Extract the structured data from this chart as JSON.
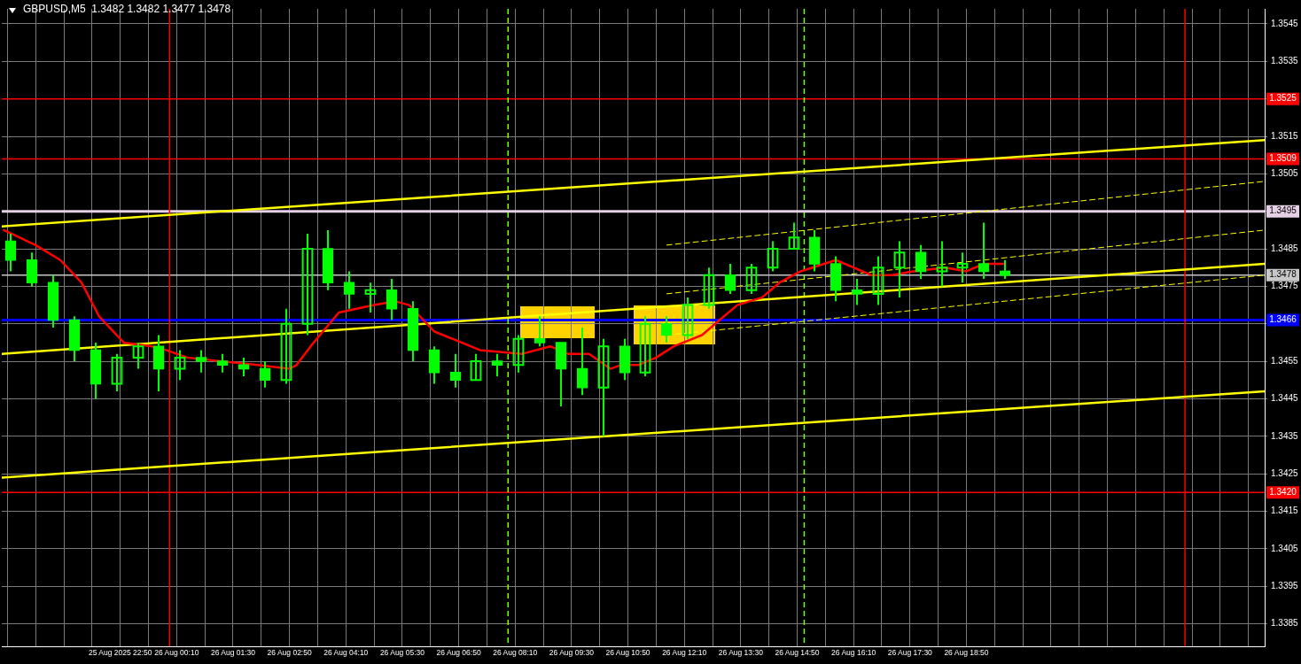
{
  "chart_data": {
    "type": "candlestick",
    "title": "GBPUSD,M5  1.3482 1.3482 1.3477 1.3478",
    "color": "#00ff00",
    "x": [
      "2025-08-25T20:15",
      "2025-08-25T20:45",
      "2025-08-25T21:15",
      "2025-08-25T21:45",
      "2025-08-25T22:15",
      "2025-08-25T22:45",
      "2025-08-25T23:15",
      "2025-08-25T23:45",
      "2025-08-26T00:15",
      "2025-08-26T00:45",
      "2025-08-26T01:15",
      "2025-08-26T01:45",
      "2025-08-26T02:15",
      "2025-08-26T02:45",
      "2025-08-26T03:15",
      "2025-08-26T03:45",
      "2025-08-26T04:15",
      "2025-08-26T04:45",
      "2025-08-26T05:15",
      "2025-08-26T05:45",
      "2025-08-26T06:15",
      "2025-08-26T06:45",
      "2025-08-26T07:15",
      "2025-08-26T07:45",
      "2025-08-26T08:15",
      "2025-08-26T08:45",
      "2025-08-26T09:15",
      "2025-08-26T09:45",
      "2025-08-26T10:15",
      "2025-08-26T10:45",
      "2025-08-26T11:15",
      "2025-08-26T11:45",
      "2025-08-26T12:15",
      "2025-08-26T12:45",
      "2025-08-26T13:15",
      "2025-08-26T13:45",
      "2025-08-26T14:15",
      "2025-08-26T14:45",
      "2025-08-26T15:15",
      "2025-08-26T15:45",
      "2025-08-26T16:15",
      "2025-08-26T16:45",
      "2025-08-26T17:15",
      "2025-08-26T17:45",
      "2025-08-26T18:15",
      "2025-08-26T18:45",
      "2025-08-26T19:15",
      "2025-08-26T19:45"
    ],
    "ohlc": [
      [
        1.3487,
        1.3489,
        1.3479,
        1.3482
      ],
      [
        1.3482,
        1.3484,
        1.3475,
        1.3476
      ],
      [
        1.3476,
        1.3478,
        1.3464,
        1.3466
      ],
      [
        1.3466,
        1.3467,
        1.3455,
        1.3458
      ],
      [
        1.3458,
        1.346,
        1.3445,
        1.3449
      ],
      [
        1.3449,
        1.3457,
        1.3447,
        1.3456
      ],
      [
        1.3456,
        1.346,
        1.3453,
        1.3459
      ],
      [
        1.3459,
        1.3462,
        1.3447,
        1.3453
      ],
      [
        1.3453,
        1.3458,
        1.345,
        1.3456
      ],
      [
        1.3456,
        1.3458,
        1.3452,
        1.3455
      ],
      [
        1.3455,
        1.3457,
        1.3452,
        1.3454
      ],
      [
        1.3454,
        1.3456,
        1.3451,
        1.3453
      ],
      [
        1.3453,
        1.3455,
        1.3448,
        1.345
      ],
      [
        1.345,
        1.3469,
        1.3449,
        1.3465
      ],
      [
        1.3465,
        1.3489,
        1.3462,
        1.3485
      ],
      [
        1.3485,
        1.349,
        1.3474,
        1.3476
      ],
      [
        1.3476,
        1.3479,
        1.3469,
        1.3473
      ],
      [
        1.3473,
        1.3476,
        1.3468,
        1.3474
      ],
      [
        1.3474,
        1.3477,
        1.3466,
        1.3469
      ],
      [
        1.3469,
        1.3471,
        1.3455,
        1.3458
      ],
      [
        1.3458,
        1.3459,
        1.3449,
        1.3452
      ],
      [
        1.3452,
        1.3457,
        1.3448,
        1.345
      ],
      [
        1.345,
        1.3457,
        1.345,
        1.3455
      ],
      [
        1.3455,
        1.3457,
        1.3451,
        1.3454
      ],
      [
        1.3454,
        1.3462,
        1.3452,
        1.3461
      ],
      [
        1.3461,
        1.3467,
        1.3459,
        1.346
      ],
      [
        1.346,
        1.346,
        1.3443,
        1.3453
      ],
      [
        1.3453,
        1.3464,
        1.3446,
        1.3448
      ],
      [
        1.3448,
        1.3461,
        1.3435,
        1.3459
      ],
      [
        1.3459,
        1.3461,
        1.345,
        1.3452
      ],
      [
        1.3452,
        1.3467,
        1.3451,
        1.3465
      ],
      [
        1.3465,
        1.3467,
        1.346,
        1.3462
      ],
      [
        1.3462,
        1.3472,
        1.3461,
        1.347
      ],
      [
        1.347,
        1.348,
        1.3469,
        1.3478
      ],
      [
        1.3478,
        1.3481,
        1.3473,
        1.3474
      ],
      [
        1.3474,
        1.3481,
        1.3473,
        1.348
      ],
      [
        1.348,
        1.3487,
        1.3479,
        1.3485
      ],
      [
        1.3485,
        1.3492,
        1.3485,
        1.3488
      ],
      [
        1.3488,
        1.349,
        1.3479,
        1.3481
      ],
      [
        1.3481,
        1.3483,
        1.3471,
        1.3474
      ],
      [
        1.3474,
        1.3477,
        1.347,
        1.3473
      ],
      [
        1.3473,
        1.3483,
        1.347,
        1.348
      ],
      [
        1.348,
        1.3487,
        1.3472,
        1.3484
      ],
      [
        1.3484,
        1.3486,
        1.3477,
        1.3479
      ],
      [
        1.3479,
        1.3487,
        1.3475,
        1.348
      ],
      [
        1.348,
        1.3484,
        1.3476,
        1.3481
      ],
      [
        1.3481,
        1.3492,
        1.3477,
        1.3479
      ],
      [
        1.3479,
        1.3482,
        1.3477,
        1.3478
      ]
    ],
    "series": [
      {
        "type": "line",
        "color": "#ff0000",
        "x": [
          "2025-08-25T20:05",
          "2025-08-25T20:50",
          "2025-08-25T21:25",
          "2025-08-25T21:55",
          "2025-08-25T22:20",
          "2025-08-25T22:55",
          "2025-08-25T23:35",
          "2025-08-25T23:55",
          "2025-08-26T00:25",
          "2025-08-26T01:15",
          "2025-08-26T02:05",
          "2025-08-26T02:50",
          "2025-08-26T03:00",
          "2025-08-26T03:20",
          "2025-08-26T04:00",
          "2025-08-26T04:50",
          "2025-08-26T05:20",
          "2025-08-26T05:40",
          "2025-08-26T06:15",
          "2025-08-26T07:20",
          "2025-08-26T08:20",
          "2025-08-26T09:00",
          "2025-08-26T09:25",
          "2025-08-26T09:55",
          "2025-08-26T10:25",
          "2025-08-26T10:40",
          "2025-08-26T11:05",
          "2025-08-26T11:30",
          "2025-08-26T11:55",
          "2025-08-26T12:35",
          "2025-08-26T13:00",
          "2025-08-26T13:25",
          "2025-08-26T14:00",
          "2025-08-26T14:25",
          "2025-08-26T14:55",
          "2025-08-26T15:45",
          "2025-08-26T16:35",
          "2025-08-26T17:05",
          "2025-08-26T17:35",
          "2025-08-26T18:20",
          "2025-08-26T18:50",
          "2025-08-26T19:15",
          "2025-08-26T19:45"
        ],
        "values": [
          1.349,
          1.3486,
          1.3482,
          1.3476,
          1.3467,
          1.346,
          1.3459,
          1.3458,
          1.3456,
          1.3455,
          1.3454,
          1.3453,
          1.3454,
          1.3459,
          1.3468,
          1.347,
          1.3471,
          1.347,
          1.3463,
          1.3458,
          1.3457,
          1.3459,
          1.3457,
          1.3457,
          1.3453,
          1.3454,
          1.3454,
          1.3456,
          1.3459,
          1.3462,
          1.3466,
          1.347,
          1.3472,
          1.3476,
          1.3479,
          1.3482,
          1.3478,
          1.3478,
          1.3479,
          1.348,
          1.3479,
          1.3481,
          1.3481
        ]
      },
      {
        "type": "line",
        "color": "#ffff00",
        "x": [
          "2025-08-25T20:02",
          "2025-08-27T01:53"
        ],
        "values": [
          1.3491,
          1.3514
        ]
      },
      {
        "type": "line",
        "color": "#ffff00",
        "x": [
          "2025-08-25T20:02",
          "2025-08-27T01:53"
        ],
        "values": [
          1.3457,
          1.3481
        ]
      },
      {
        "type": "line",
        "color": "#ffff00",
        "x": [
          "2025-08-25T20:02",
          "2025-08-27T01:53"
        ],
        "values": [
          1.3424,
          1.3447
        ]
      },
      {
        "type": "line",
        "color": "#ffff00",
        "line_style": "dashed",
        "x": [
          "2025-08-26T11:45",
          "2025-08-27T01:53"
        ],
        "values": [
          1.3486,
          1.3503
        ]
      },
      {
        "type": "line",
        "color": "#ffff00",
        "line_style": "dashed",
        "x": [
          "2025-08-26T11:45",
          "2025-08-27T01:53"
        ],
        "values": [
          1.3473,
          1.349
        ]
      },
      {
        "type": "line",
        "color": "#ffff00",
        "line_style": "dashed",
        "x": [
          "2025-08-26T11:45",
          "2025-08-27T01:53"
        ],
        "values": [
          1.3462,
          1.3478
        ]
      }
    ],
    "xlim": [
      "2025-08-25T20:02",
      "2025-08-27T01:53"
    ],
    "xticks": [
      {
        "value": "2025-08-25T20:10",
        "label": null
      },
      {
        "value": "2025-08-25T20:50",
        "label": null
      },
      {
        "value": "2025-08-25T21:30",
        "label": null
      },
      {
        "value": "2025-08-25T22:10",
        "label": null
      },
      {
        "value": "2025-08-25T22:50",
        "label": "25 Aug 2025 22:50"
      },
      {
        "value": "2025-08-25T23:30",
        "label": null
      },
      {
        "value": "2025-08-26T00:10",
        "label": "26 Aug 00:10"
      },
      {
        "value": "2025-08-26T00:50",
        "label": null
      },
      {
        "value": "2025-08-26T01:30",
        "label": "26 Aug 01:30"
      },
      {
        "value": "2025-08-26T02:10",
        "label": null
      },
      {
        "value": "2025-08-26T02:50",
        "label": "26 Aug 02:50"
      },
      {
        "value": "2025-08-26T03:30",
        "label": null
      },
      {
        "value": "2025-08-26T04:10",
        "label": "26 Aug 04:10"
      },
      {
        "value": "2025-08-26T04:50",
        "label": null
      },
      {
        "value": "2025-08-26T05:30",
        "label": "26 Aug 05:30"
      },
      {
        "value": "2025-08-26T06:10",
        "label": null
      },
      {
        "value": "2025-08-26T06:50",
        "label": "26 Aug 06:50"
      },
      {
        "value": "2025-08-26T07:30",
        "label": null
      },
      {
        "value": "2025-08-26T08:10",
        "label": "26 Aug 08:10"
      },
      {
        "value": "2025-08-26T08:50",
        "label": null
      },
      {
        "value": "2025-08-26T09:30",
        "label": "26 Aug 09:30"
      },
      {
        "value": "2025-08-26T10:10",
        "label": null
      },
      {
        "value": "2025-08-26T10:50",
        "label": "26 Aug 10:50"
      },
      {
        "value": "2025-08-26T11:30",
        "label": null
      },
      {
        "value": "2025-08-26T12:10",
        "label": "26 Aug 12:10"
      },
      {
        "value": "2025-08-26T12:50",
        "label": null
      },
      {
        "value": "2025-08-26T13:30",
        "label": "26 Aug 13:30"
      },
      {
        "value": "2025-08-26T14:10",
        "label": null
      },
      {
        "value": "2025-08-26T14:50",
        "label": "26 Aug 14:50"
      },
      {
        "value": "2025-08-26T15:30",
        "label": null
      },
      {
        "value": "2025-08-26T16:10",
        "label": "26 Aug 16:10"
      },
      {
        "value": "2025-08-26T16:50",
        "label": null
      },
      {
        "value": "2025-08-26T17:30",
        "label": "26 Aug 17:30"
      },
      {
        "value": "2025-08-26T18:10",
        "label": null
      },
      {
        "value": "2025-08-26T18:50",
        "label": "26 Aug 18:50"
      },
      {
        "value": "2025-08-26T19:30",
        "label": null
      },
      {
        "value": "2025-08-26T20:10",
        "label": null
      },
      {
        "value": "2025-08-26T20:50",
        "label": null
      },
      {
        "value": "2025-08-26T21:30",
        "label": null
      },
      {
        "value": "2025-08-26T22:10",
        "label": null
      },
      {
        "value": "2025-08-26T22:50",
        "label": null
      },
      {
        "value": "2025-08-26T23:30",
        "label": null
      },
      {
        "value": "2025-08-27T00:10",
        "label": null
      },
      {
        "value": "2025-08-27T00:50",
        "label": null
      },
      {
        "value": "2025-08-27T01:30",
        "label": null
      }
    ],
    "ylim": [
      1.3379,
      1.3549
    ],
    "yticks": [
      1.3545,
      1.3535,
      {
        "value": 1.3525,
        "label": null
      },
      1.3515,
      1.3505,
      1.3495,
      1.3485,
      1.3475,
      {
        "value": 1.3465,
        "label": null
      },
      1.3455,
      1.3445,
      1.3435,
      1.3425,
      1.3415,
      1.3405,
      1.3395,
      1.3385
    ],
    "ref_lines": [
      {
        "axis": "y",
        "value": 1.3525,
        "label": "1.3525",
        "color": "#ff0000"
      },
      {
        "axis": "y",
        "value": 1.3509,
        "label": "1.3509",
        "color": "#ff0000"
      },
      {
        "axis": "y",
        "value": 1.3495,
        "label": "1.3495",
        "color": "#e6d0e6"
      },
      {
        "axis": "y",
        "value": 1.3478,
        "label": "1.3478",
        "color": "#c8c8c8"
      },
      {
        "axis": "y",
        "value": 1.3466,
        "label": "1.3466",
        "color": "#0000ff"
      },
      {
        "axis": "y",
        "value": 1.342,
        "label": "1.3420",
        "color": "#ff0000"
      },
      {
        "axis": "x",
        "value": "2025-08-26T00:00",
        "color": "#ff0000"
      },
      {
        "axis": "x",
        "value": "2025-08-27T00:00",
        "color": "#ff0000"
      },
      {
        "axis": "x",
        "value": "2025-08-26T08:00",
        "color": "#7fff00",
        "line_style": "dashed"
      },
      {
        "axis": "x",
        "value": "2025-08-26T15:00",
        "color": "#7fff00",
        "line_style": "dashed"
      }
    ],
    "grid": true,
    "legend": false,
    "marker": "none"
  }
}
